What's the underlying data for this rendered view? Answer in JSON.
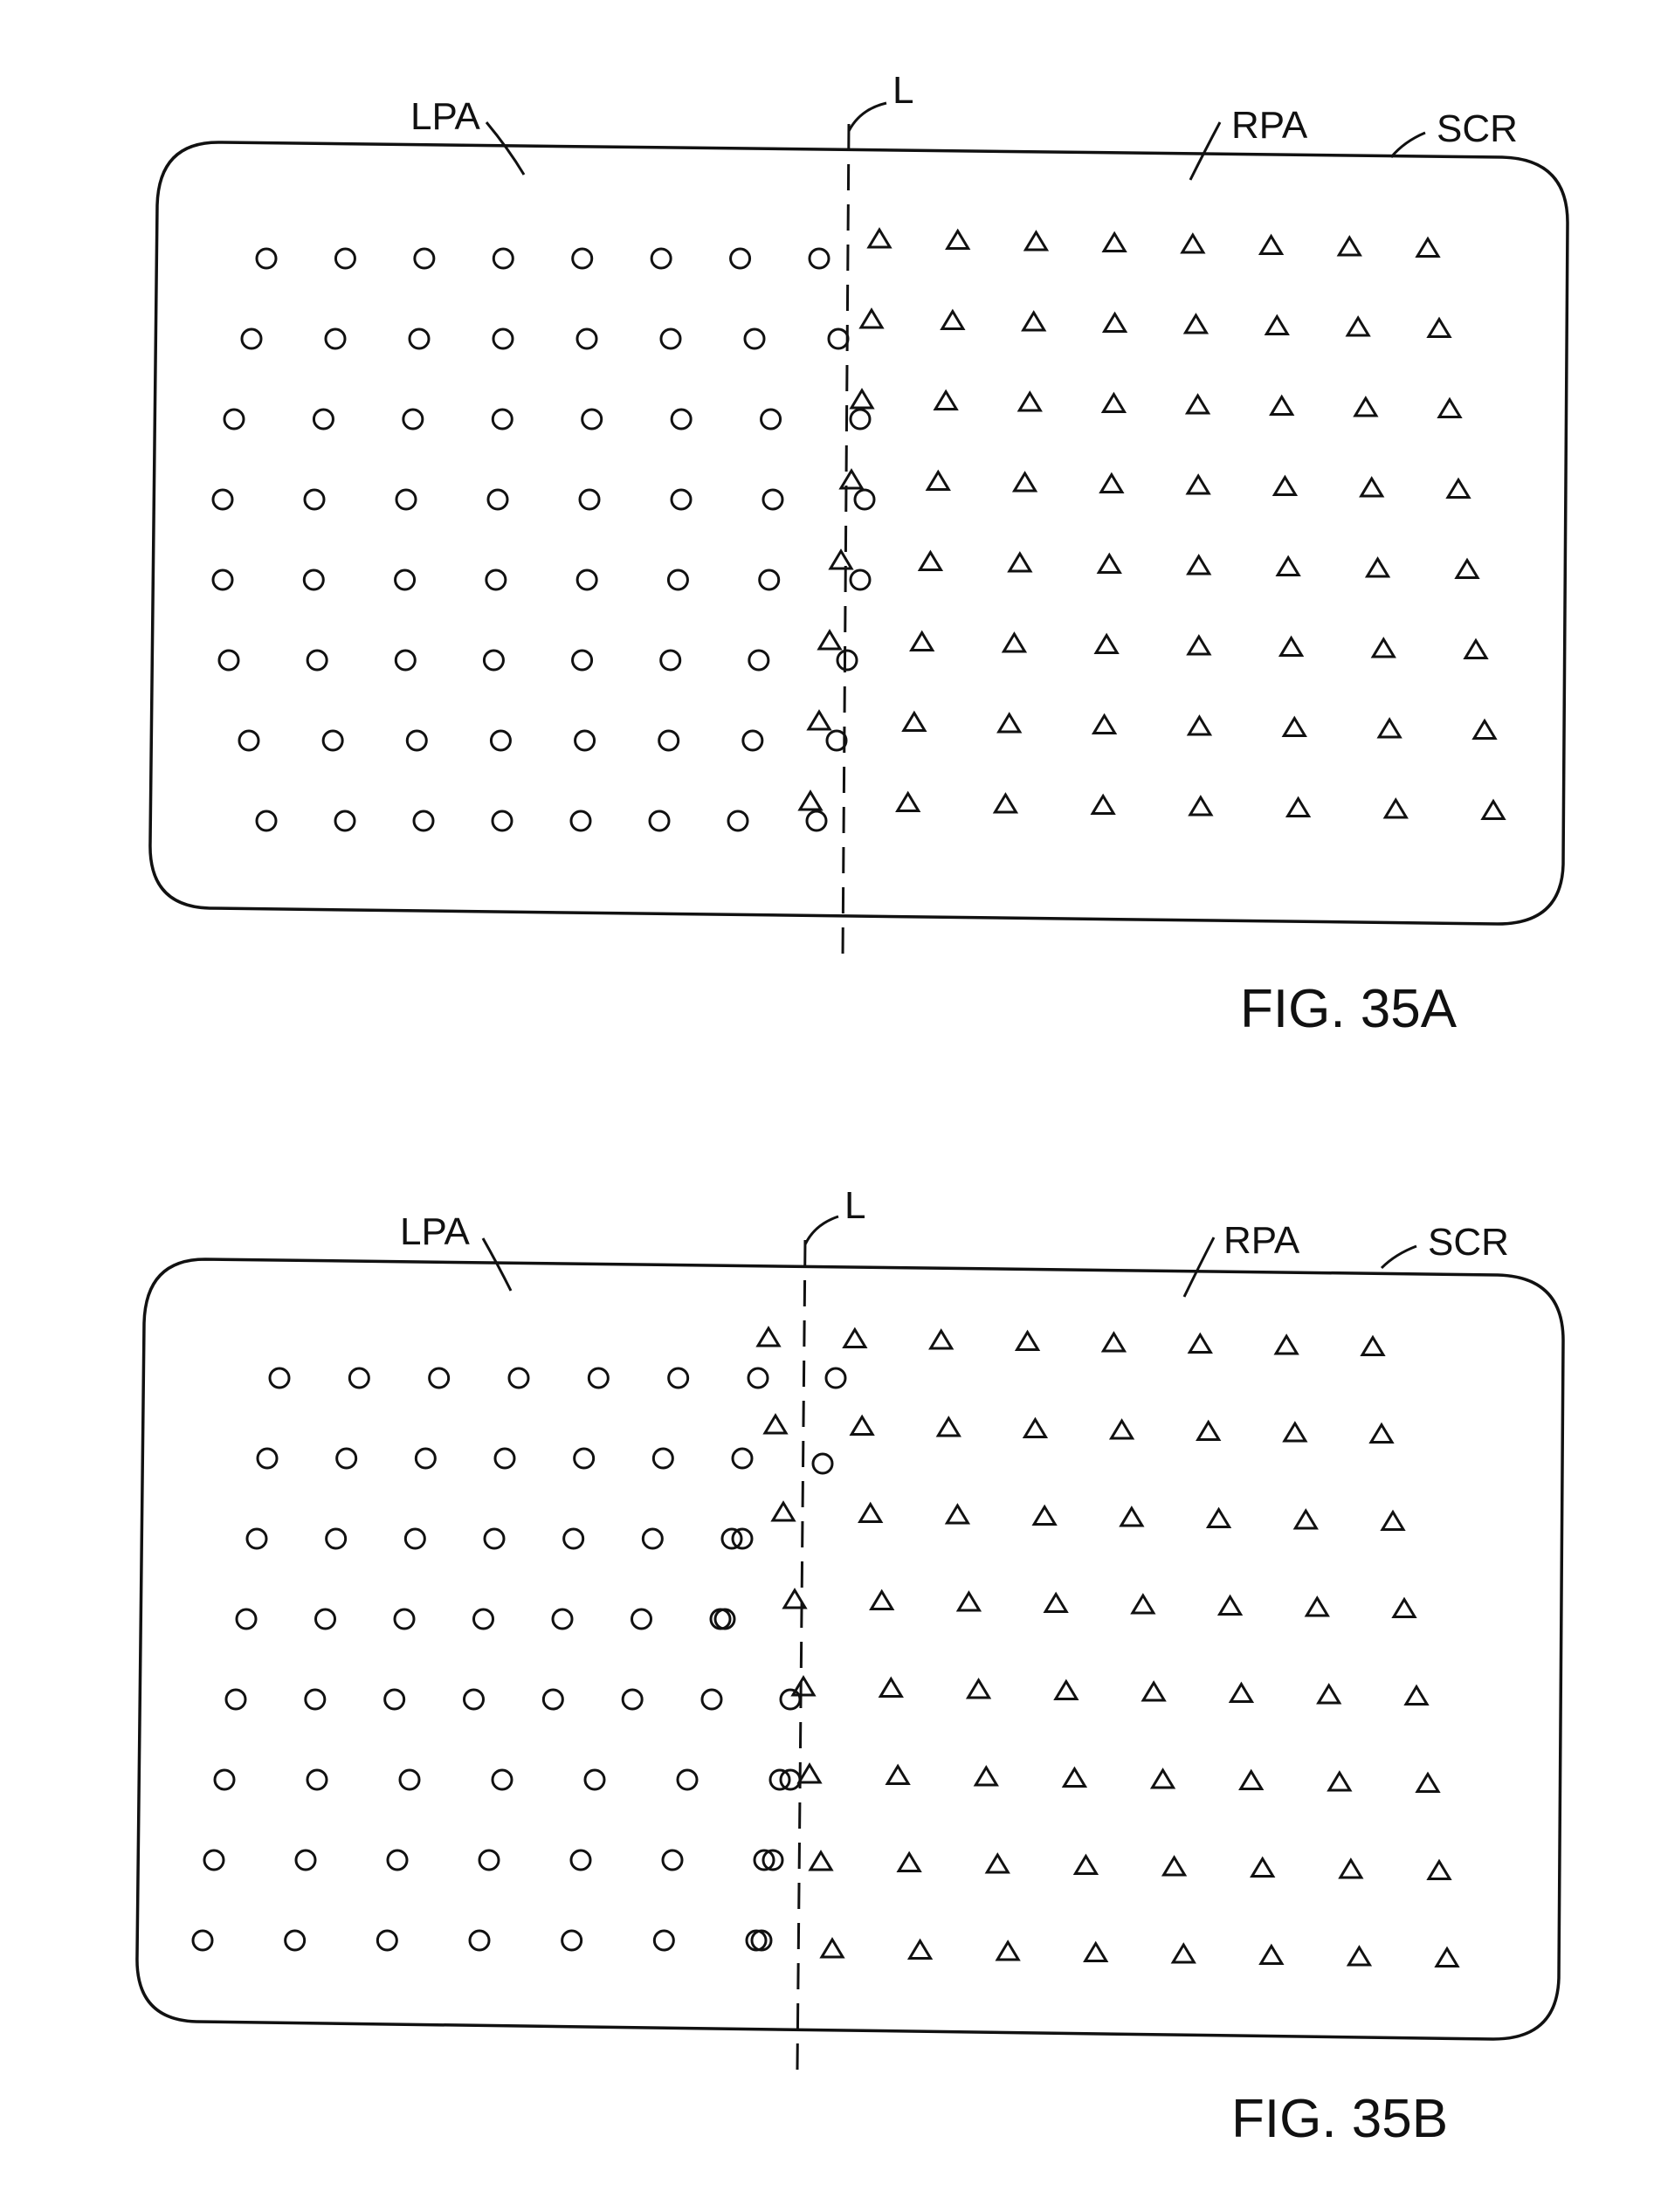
{
  "figures": [
    {
      "id": "a",
      "caption": "FIG. 35A",
      "labels": {
        "left_area": "LPA",
        "right_area": "RPA",
        "screen": "SCR",
        "line": "L"
      }
    },
    {
      "id": "b",
      "caption": "FIG. 35B",
      "labels": {
        "left_area": "LPA",
        "right_area": "RPA",
        "screen": "SCR",
        "line": "L"
      }
    }
  ],
  "legend_symbols": {
    "left_pixel_marker": "circle",
    "right_pixel_marker": "triangle"
  },
  "colors": {
    "ink": "#111111",
    "paper": "#ffffff"
  }
}
